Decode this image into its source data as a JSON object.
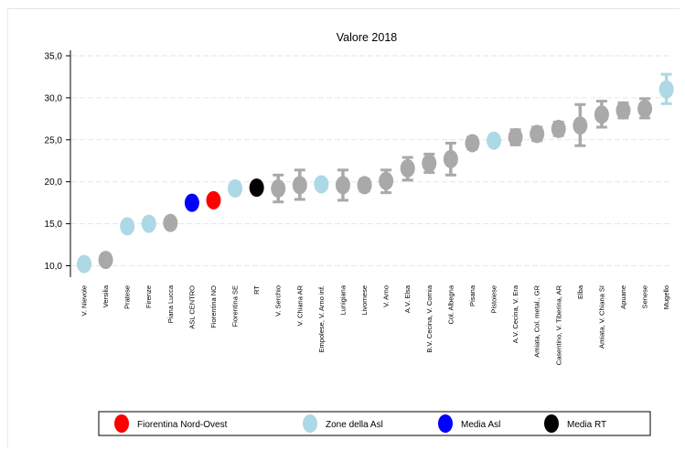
{
  "chart_data": {
    "type": "scatter",
    "title": "Valore 2018",
    "ylim": [
      8.5,
      35.0
    ],
    "yticks": [
      "10,0",
      "15,0",
      "20,0",
      "25,0",
      "30,0",
      "35,0"
    ],
    "ytick_values": [
      10,
      15,
      20,
      25,
      30,
      35
    ],
    "grid": true,
    "legend_position": "bottom",
    "categories": [
      "V. Nievole",
      "Versilia",
      "Pratese",
      "Firenze",
      "Piana Lucca",
      "ASL CENTRO",
      "Fiorentina NO",
      "Fiorentina SE",
      "RT",
      "V. Serchio",
      "V. Chiana AR",
      "Empolese, V. Arno inf.",
      "Lunigiana",
      "Livornese",
      "V. Arno",
      "A.V. Elsa",
      "B.V. Cecina, V. Cornia",
      "Col. Albegna",
      "Pisana",
      "Pistoiese",
      "A.V. Cecina, V. Era",
      "Amiata, Col. metal., GR",
      "Casentino, V. Tiberina, AR",
      "Elba",
      "Amiata, V. Chiana SI",
      "Apuane",
      "Senese",
      "Mugello"
    ],
    "values": [
      10.2,
      10.7,
      14.7,
      15.0,
      15.1,
      17.5,
      17.8,
      19.2,
      19.3,
      19.2,
      19.6,
      19.7,
      19.6,
      19.6,
      20.1,
      21.6,
      22.2,
      22.7,
      24.6,
      24.9,
      25.3,
      25.7,
      26.3,
      26.7,
      28.0,
      28.5,
      28.7,
      31.0
    ],
    "ci_low": [
      9.8,
      10.3,
      14.3,
      14.6,
      14.6,
      17.2,
      17.4,
      18.8,
      19.1,
      17.6,
      17.9,
      19.3,
      17.8,
      18.9,
      18.7,
      20.2,
      21.1,
      20.8,
      23.9,
      24.4,
      24.4,
      24.9,
      25.5,
      24.3,
      26.5,
      27.6,
      27.6,
      29.3
    ],
    "ci_high": [
      10.6,
      11.1,
      15.1,
      15.4,
      15.6,
      17.8,
      18.2,
      19.6,
      19.5,
      20.8,
      21.4,
      20.1,
      21.4,
      20.3,
      21.4,
      22.9,
      23.3,
      24.6,
      25.3,
      25.4,
      26.2,
      26.5,
      27.1,
      29.2,
      29.6,
      29.4,
      29.9,
      32.8
    ],
    "groups": [
      "zone",
      "other",
      "zone",
      "zone",
      "other",
      "media_asl",
      "fiorentina_no",
      "zone",
      "media_rt",
      "other",
      "other",
      "zone",
      "other",
      "other",
      "other",
      "other",
      "other",
      "other",
      "other",
      "zone",
      "other",
      "other",
      "other",
      "other",
      "other",
      "other",
      "other",
      "zone"
    ],
    "colors": {
      "fiorentina_no": "#ff0000",
      "zone": "#add8e6",
      "media_asl": "#0000ff",
      "media_rt": "#000000",
      "other": "#a9a9a9",
      "grid": "#e6e6e6"
    },
    "legend": [
      {
        "label": "Fiorentina Nord-Ovest",
        "group": "fiorentina_no"
      },
      {
        "label": "Zone della Asl",
        "group": "zone"
      },
      {
        "label": "Media Asl",
        "group": "media_asl"
      },
      {
        "label": "Media RT",
        "group": "media_rt"
      }
    ]
  }
}
